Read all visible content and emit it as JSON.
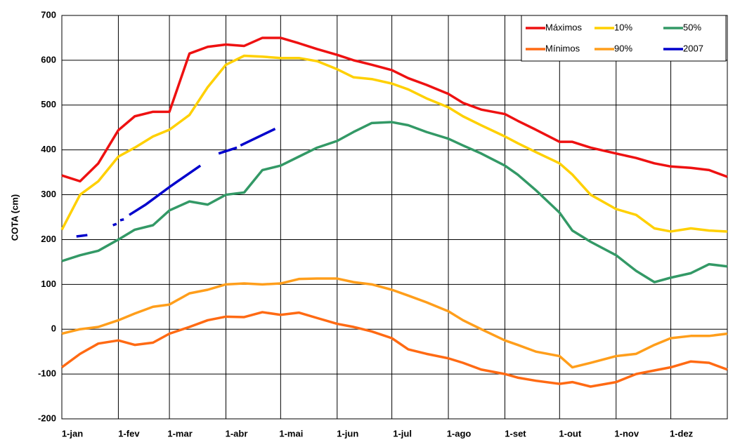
{
  "chart_data": {
    "type": "line",
    "ylabel": "COTA (cm)",
    "x": [
      0,
      10,
      20,
      31,
      40,
      50,
      59,
      70,
      80,
      90,
      100,
      110,
      120,
      130,
      140,
      151,
      160,
      170,
      181,
      190,
      200,
      212,
      220,
      230,
      243,
      250,
      260,
      273,
      280,
      290,
      304,
      315,
      325,
      334,
      345,
      355,
      365
    ],
    "xlim": [
      0,
      365
    ],
    "xticks": [
      {
        "value": 0,
        "label": "1-jan"
      },
      {
        "value": 31,
        "label": "1-fev"
      },
      {
        "value": 59,
        "label": "1-mar"
      },
      {
        "value": 90,
        "label": "1-abr"
      },
      {
        "value": 120,
        "label": "1-mai"
      },
      {
        "value": 151,
        "label": "1-jun"
      },
      {
        "value": 181,
        "label": "1-jul"
      },
      {
        "value": 212,
        "label": "1-ago"
      },
      {
        "value": 243,
        "label": "1-set"
      },
      {
        "value": 273,
        "label": "1-out"
      },
      {
        "value": 304,
        "label": "1-nov"
      },
      {
        "value": 334,
        "label": "1-dez"
      }
    ],
    "ylim": [
      -200,
      700
    ],
    "yticks": [
      -200,
      -100,
      0,
      100,
      200,
      300,
      400,
      500,
      600,
      700
    ],
    "grid": true,
    "legend": "upper right",
    "series": [
      {
        "name": "Máximos",
        "color": "#ee1111",
        "values": [
          343,
          330,
          370,
          444,
          475,
          485,
          485,
          615,
          630,
          635,
          632,
          650,
          650,
          638,
          625,
          612,
          600,
          590,
          578,
          560,
          545,
          525,
          505,
          490,
          480,
          465,
          445,
          418,
          418,
          405,
          392,
          382,
          370,
          363,
          360,
          355,
          340
        ]
      },
      {
        "name": "10%",
        "color": "#ffd000",
        "values": [
          222,
          300,
          330,
          385,
          405,
          430,
          445,
          478,
          540,
          590,
          610,
          608,
          605,
          605,
          598,
          580,
          562,
          558,
          548,
          535,
          515,
          495,
          475,
          455,
          430,
          415,
          395,
          370,
          345,
          300,
          268,
          255,
          225,
          218,
          225,
          220,
          218
        ]
      },
      {
        "name": "50%",
        "color": "#339966",
        "values": [
          152,
          165,
          175,
          200,
          222,
          232,
          265,
          285,
          278,
          300,
          305,
          355,
          365,
          385,
          405,
          420,
          440,
          460,
          462,
          455,
          440,
          425,
          410,
          392,
          365,
          345,
          310,
          260,
          220,
          195,
          165,
          130,
          105,
          115,
          125,
          145,
          140
        ]
      },
      {
        "name": "Mínimos",
        "color": "#ff6a13",
        "values": [
          -85,
          -55,
          -32,
          -25,
          -35,
          -30,
          -10,
          5,
          20,
          28,
          27,
          38,
          32,
          37,
          25,
          12,
          5,
          -5,
          -20,
          -45,
          -55,
          -65,
          -75,
          -90,
          -100,
          -108,
          -115,
          -122,
          -118,
          -128,
          -118,
          -100,
          -92,
          -85,
          -72,
          -75,
          -90
        ]
      },
      {
        "name": "90%",
        "color": "#ff9e1b",
        "values": [
          -10,
          0,
          5,
          20,
          35,
          50,
          55,
          80,
          88,
          100,
          102,
          100,
          102,
          112,
          113,
          113,
          105,
          100,
          88,
          75,
          60,
          40,
          20,
          0,
          -25,
          -35,
          -50,
          -60,
          -85,
          -75,
          -60,
          -55,
          -35,
          -20,
          -15,
          -15,
          -10
        ]
      },
      {
        "name": "2007",
        "color": "#0000cc",
        "x": [
          8,
          14,
          17,
          28,
          30,
          31,
          32,
          34,
          35,
          37,
          46,
          47,
          60,
          76,
          78,
          86,
          96,
          97,
          98,
          117
        ],
        "values": [
          207,
          210,
          null,
          232,
          235,
          null,
          243,
          245,
          null,
          255,
          278,
          281,
          320,
          365,
          null,
          392,
          405,
          null,
          410,
          447
        ]
      }
    ]
  }
}
